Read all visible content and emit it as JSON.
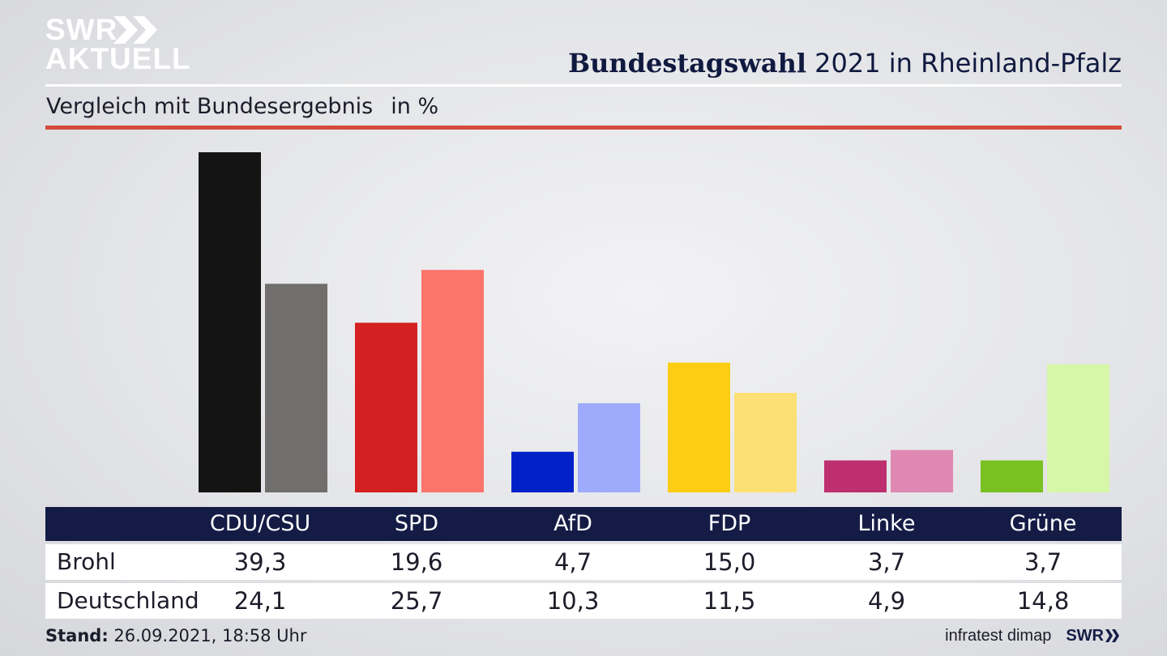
{
  "brand": {
    "line1": "SWR",
    "line2": "AKTUELL",
    "logo_icon": "swr-chevrons-icon"
  },
  "header": {
    "title_bold": "Bundestagswahl",
    "title_rest": " 2021 in Rheinland-Pfalz",
    "subtitle": "Vergleich mit Bundesergebnis",
    "unit": "in %"
  },
  "colors": {
    "primary": [
      "#141414",
      "#d42020",
      "#0021c8",
      "#fccd12",
      "#bd2f6e",
      "#79c021"
    ],
    "secondary": [
      "#716f6e",
      "#fc746c",
      "#9eabfc",
      "#fde073",
      "#df88b3",
      "#d6f7a8"
    ],
    "accent_red": "#d44a3b",
    "table_header": "#141c46"
  },
  "chart_data": {
    "type": "bar",
    "categories": [
      "CDU/CSU",
      "SPD",
      "AfD",
      "FDP",
      "Linke",
      "Grüne"
    ],
    "series": [
      {
        "name": "Brohl",
        "values": [
          39.3,
          19.6,
          4.7,
          15.0,
          3.7,
          3.7
        ]
      },
      {
        "name": "Deutschland",
        "values": [
          24.1,
          25.7,
          10.3,
          11.5,
          4.9,
          14.8
        ]
      }
    ],
    "title": "Bundestagswahl 2021 in Rheinland-Pfalz",
    "subtitle": "Vergleich mit Bundesergebnis",
    "ylabel": "in %",
    "ylim": [
      0,
      39.3
    ],
    "grid": false,
    "legend": "table-below"
  },
  "table": {
    "headers": [
      "CDU/CSU",
      "SPD",
      "AfD",
      "FDP",
      "Linke",
      "Grüne"
    ],
    "rows": [
      {
        "label": "Brohl",
        "values": [
          "39,3",
          "19,6",
          "4,7",
          "15,0",
          "3,7",
          "3,7"
        ]
      },
      {
        "label": "Deutschland",
        "values": [
          "24,1",
          "25,7",
          "10,3",
          "11,5",
          "4,9",
          "14,8"
        ]
      }
    ]
  },
  "footer": {
    "stand_label": "Stand:",
    "stand_value": " 26.09.2021, 18:58 Uhr",
    "source": "infratest dimap",
    "brand_small": "SWR"
  }
}
